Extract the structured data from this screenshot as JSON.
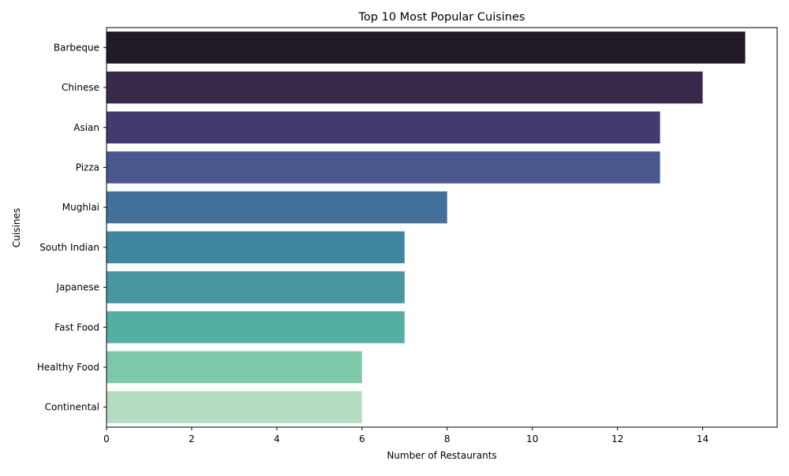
{
  "chart_data": {
    "type": "bar",
    "orientation": "horizontal",
    "title": "Top 10 Most Popular Cuisines",
    "xlabel": "Number of Restaurants",
    "ylabel": "Cuisines",
    "categories": [
      "Barbeque",
      "Chinese",
      "Asian",
      "Pizza",
      "Mughlai",
      "South Indian",
      "Japanese",
      "Fast Food",
      "Healthy Food",
      "Continental"
    ],
    "values": [
      15,
      14,
      13,
      13,
      8,
      7,
      7,
      7,
      6,
      6
    ],
    "colors": [
      "#231a28",
      "#372a4b",
      "#433b6f",
      "#49578e",
      "#42709a",
      "#3f879f",
      "#4796a0",
      "#54afa2",
      "#7dc8a9",
      "#b3dcc1"
    ],
    "xlim": [
      0,
      15.75
    ],
    "xticks": [
      0,
      2,
      4,
      6,
      8,
      10,
      12,
      14
    ],
    "grid": false,
    "legend": "none"
  }
}
